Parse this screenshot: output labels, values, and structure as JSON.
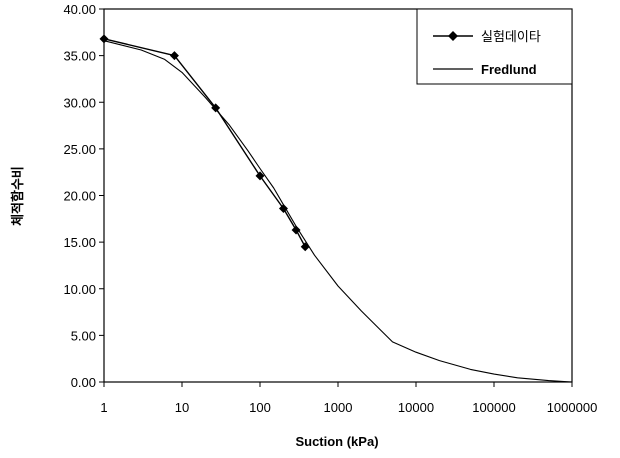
{
  "chart_data": {
    "type": "line",
    "xlabel": "Suction (kPa)",
    "ylabel": "체적함수비",
    "x_scale": "log",
    "xlim": [
      1,
      1000000
    ],
    "ylim": [
      0,
      40
    ],
    "x_ticks": [
      1,
      10,
      100,
      1000,
      10000,
      100000,
      1000000
    ],
    "x_tick_labels": [
      "1",
      "10",
      "100",
      "1000",
      "10000",
      "100000",
      "1000000"
    ],
    "y_ticks": [
      0,
      5,
      10,
      15,
      20,
      25,
      30,
      35,
      40
    ],
    "y_tick_labels": [
      "0.00",
      "5.00",
      "10.00",
      "15.00",
      "20.00",
      "25.00",
      "30.00",
      "35.00",
      "40.00"
    ],
    "grid": false,
    "legend_position": "top-right",
    "series": [
      {
        "name": "실험데이타",
        "marker": "diamond",
        "x": [
          1,
          8,
          27,
          100,
          200,
          290,
          380
        ],
        "y": [
          36.8,
          35.0,
          29.4,
          22.1,
          18.6,
          16.3,
          14.5
        ]
      },
      {
        "name": "Fredlund",
        "marker": "none",
        "x": [
          1,
          3,
          6,
          10,
          20,
          40,
          70,
          100,
          150,
          200,
          300,
          500,
          1000,
          2000,
          5000,
          10000,
          20000,
          50000,
          100000,
          200000,
          500000,
          1000000
        ],
        "y": [
          36.6,
          35.6,
          34.6,
          33.2,
          30.5,
          27.6,
          24.8,
          22.9,
          20.8,
          19.0,
          16.5,
          13.6,
          10.3,
          7.6,
          4.3,
          3.2,
          2.3,
          1.35,
          0.85,
          0.45,
          0.15,
          0.0
        ]
      }
    ]
  }
}
